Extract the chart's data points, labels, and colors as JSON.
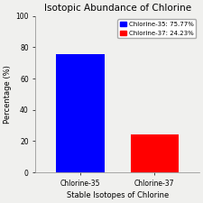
{
  "title": "Isotopic Abundance of Chlorine",
  "xlabel": "Stable Isotopes of Chlorine",
  "ylabel": "Percentage (%)",
  "categories": [
    "Chlorine-35",
    "Chlorine-37"
  ],
  "values": [
    75.77,
    24.23
  ],
  "bar_colors": [
    "#0000ff",
    "#ff0000"
  ],
  "legend_labels": [
    "Chlorine-35: 75.77%",
    "Chlorine-37: 24.23%"
  ],
  "ylim": [
    0,
    100
  ],
  "yticks": [
    0,
    20,
    40,
    60,
    80,
    100
  ],
  "background_color": "#f0f0ee",
  "title_fontsize": 7.5,
  "axis_fontsize": 6,
  "tick_fontsize": 5.5,
  "legend_fontsize": 5,
  "bar_width": 0.65
}
